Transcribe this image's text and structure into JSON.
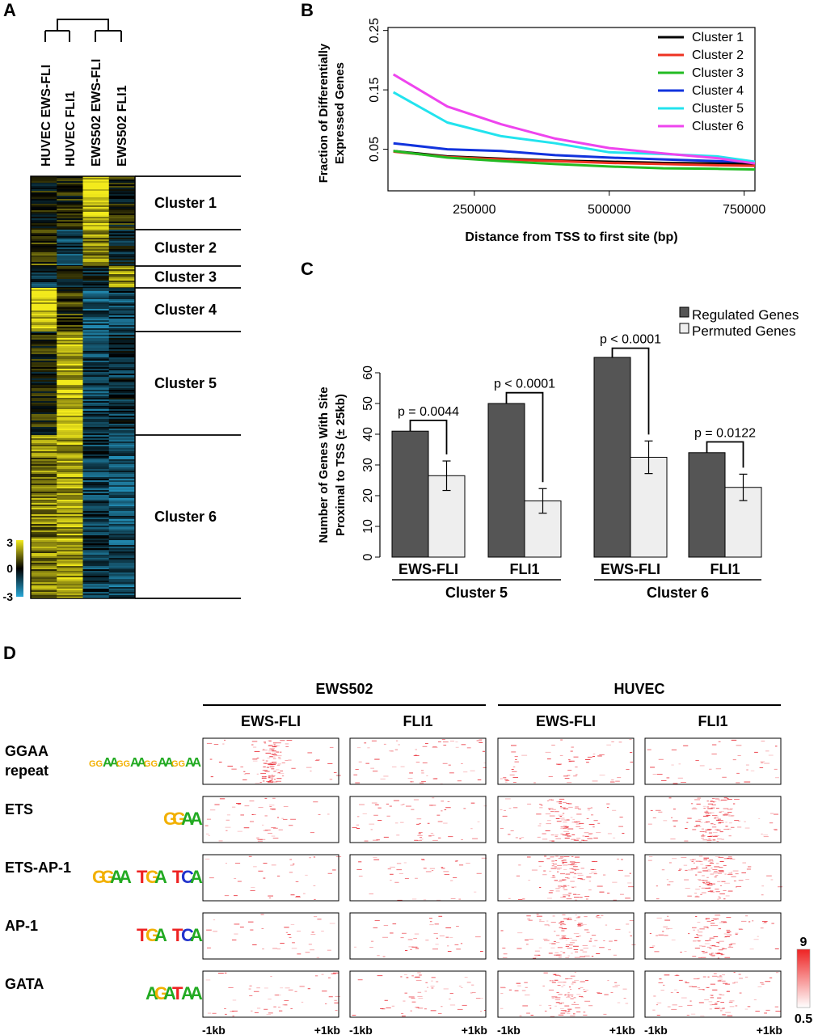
{
  "chart_data": [
    {
      "panel": "A",
      "type": "heatmap",
      "columns": [
        "HUVEC EWS-FLI",
        "HUVEC FLI1",
        "EWS502 EWS-FLI",
        "EWS502 FLI1"
      ],
      "clusters": [
        {
          "label": "Cluster 1",
          "pattern": [
            0.0,
            0.3,
            2.5,
            0.2
          ]
        },
        {
          "label": "Cluster 2",
          "pattern": [
            0.8,
            -1.0,
            1.6,
            -0.6
          ]
        },
        {
          "label": "Cluster 3",
          "pattern": [
            -0.8,
            -0.2,
            -0.4,
            1.8
          ]
        },
        {
          "label": "Cluster 4",
          "pattern": [
            2.6,
            0.5,
            -1.4,
            -1.1
          ]
        },
        {
          "label": "Cluster 5",
          "pattern": [
            0.2,
            2.4,
            -1.2,
            -0.8
          ]
        },
        {
          "label": "Cluster 6",
          "pattern": [
            1.6,
            2.0,
            -1.0,
            -1.4
          ]
        }
      ],
      "colorbar": {
        "ticks": [
          "3",
          "0",
          "-3"
        ],
        "low": "#29a8d8",
        "mid": "#000000",
        "high": "#f2ea1c"
      }
    },
    {
      "panel": "B",
      "type": "line",
      "xlabel": "Distance from TSS to first site (bp)",
      "ylabel": [
        "Fraction of Differentially",
        "Expressed Genes"
      ],
      "xlim": [
        90000,
        770000
      ],
      "ylim": [
        -0.02,
        0.255
      ],
      "xticks": [
        250000,
        500000,
        750000
      ],
      "xtick_labels": [
        "250000",
        "500000",
        "750000"
      ],
      "yticks": [
        0.05,
        0.15,
        0.25
      ],
      "ytick_labels": [
        "0.05",
        "0.15",
        "0.25"
      ],
      "x": [
        100000,
        200000,
        300000,
        400000,
        500000,
        600000,
        700000,
        770000
      ],
      "series": [
        {
          "name": "Cluster 1",
          "color": "#000000",
          "values": [
            0.047,
            0.038,
            0.034,
            0.031,
            0.029,
            0.027,
            0.026,
            0.025
          ]
        },
        {
          "name": "Cluster 2",
          "color": "#ee3322",
          "values": [
            0.046,
            0.037,
            0.033,
            0.03,
            0.027,
            0.025,
            0.023,
            0.022
          ]
        },
        {
          "name": "Cluster 3",
          "color": "#22bb22",
          "values": [
            0.047,
            0.036,
            0.03,
            0.025,
            0.021,
            0.018,
            0.017,
            0.016
          ]
        },
        {
          "name": "Cluster 4",
          "color": "#1133dd",
          "values": [
            0.06,
            0.05,
            0.047,
            0.04,
            0.036,
            0.033,
            0.03,
            0.029
          ]
        },
        {
          "name": "Cluster 5",
          "color": "#22e3ee",
          "values": [
            0.146,
            0.095,
            0.072,
            0.06,
            0.045,
            0.042,
            0.038,
            0.029
          ]
        },
        {
          "name": "Cluster 6",
          "color": "#ee44ee",
          "values": [
            0.176,
            0.122,
            0.092,
            0.068,
            0.052,
            0.043,
            0.035,
            0.026
          ]
        }
      ]
    },
    {
      "panel": "C",
      "type": "bar",
      "ylabel": [
        "Number of Genes With Site",
        "Proximal to TSS (± 25kb)"
      ],
      "ylim": [
        0,
        65
      ],
      "yticks": [
        0,
        10,
        20,
        30,
        40,
        50,
        60
      ],
      "legend": [
        "Regulated Genes",
        "Permuted Genes"
      ],
      "groups": [
        {
          "cluster": "Cluster 5",
          "pairs": [
            {
              "label": "EWS-FLI",
              "regulated": 41,
              "permuted": 26.5,
              "error": 4.8,
              "p": "p = 0.0044"
            },
            {
              "label": "FLI1",
              "regulated": 50,
              "permuted": 18.3,
              "error": 4.0,
              "p": "p < 0.0001"
            }
          ]
        },
        {
          "cluster": "Cluster 6",
          "pairs": [
            {
              "label": "EWS-FLI",
              "regulated": 65,
              "permuted": 32.5,
              "error": 5.3,
              "p": "p < 0.0001"
            },
            {
              "label": "FLI1",
              "regulated": 34,
              "permuted": 22.7,
              "error": 4.3,
              "p": "p = 0.0122"
            }
          ]
        }
      ]
    },
    {
      "panel": "D",
      "type": "heatmap",
      "cell_lines": [
        "EWS502",
        "HUVEC"
      ],
      "columns": [
        "EWS-FLI",
        "FLI1",
        "EWS-FLI",
        "FLI1"
      ],
      "rows": [
        {
          "label": [
            "GGAA",
            "repeat"
          ],
          "motif": "GGAAGGAAGGAAGGAA",
          "intensity": [
            0.85,
            0.3,
            0.25,
            0.12
          ]
        },
        {
          "label": [
            "ETS"
          ],
          "motif": "GGAA",
          "intensity": [
            0.2,
            0.28,
            0.8,
            0.9
          ]
        },
        {
          "label": [
            "ETS-AP-1"
          ],
          "motif": "GGAA TGA TCA",
          "intensity": [
            0.05,
            0.1,
            0.85,
            0.85
          ]
        },
        {
          "label": [
            "AP-1"
          ],
          "motif": "TGA TCA",
          "intensity": [
            0.06,
            0.12,
            0.8,
            0.75
          ]
        },
        {
          "label": [
            "GATA"
          ],
          "motif": "AGATAA",
          "intensity": [
            0.2,
            0.25,
            0.7,
            0.6
          ]
        }
      ],
      "axis_labels": [
        "-1kb",
        "+1kb"
      ],
      "colorbar": {
        "max": "9",
        "min": "0.5",
        "color": "#ee2222"
      }
    }
  ],
  "panel_labels": [
    "A",
    "B",
    "C",
    "D"
  ]
}
